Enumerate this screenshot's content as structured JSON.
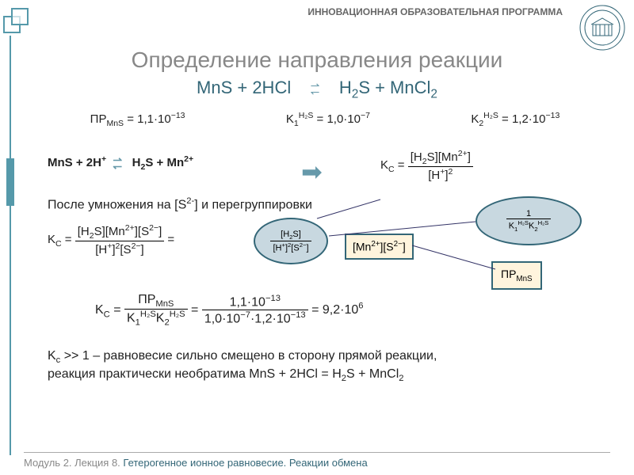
{
  "header": "ИННОВАЦИОННАЯ ОБРАЗОВАТЕЛЬНАЯ ПРОГРАММА",
  "title": "Определение направления реакции",
  "subtitle_eq": "MnS + 2HCl   ⇄   H₂S + MnCl₂",
  "const_PR": "ПР<sub>MnS</sub> = 1,1·10<sup>−13</sup>",
  "const_K1": "K<sub>1</sub><sup>H₂S</sup> = 1,0·10<sup>−7</sup>",
  "const_K2": "K<sub>2</sub><sup>H₂S</sup> = 1,2·10<sup>−13</sup>",
  "ionic_eq": "MnS + 2H<sup>+</sup>   ⇄   H<sub>2</sub>S + Mn<sup>2+</sup>",
  "Kc_def_n": "[H<sub>2</sub>S][Mn<sup>2+</sup>]",
  "Kc_def_d": "[H<sup>+</sup>]<sup>2</sup>",
  "after_mult": "После умножения на [S<sup>2-</sup>] и перегруппировки",
  "kc_exp_n": "[H<sub>2</sub>S][Mn<sup>2+</sup>][S<sup>2−</sup>]",
  "kc_exp_d": "[H<sup>+</sup>]<sup>2</sup>[S<sup>2−</sup>]",
  "oval1_n": "[H<sub>2</sub>S]",
  "oval1_d": "[H<sup>+</sup>]<sup>2</sup>[S<sup>2−</sup>]",
  "box1": "[Mn<sup>2+</sup>][S<sup>2−</sup>]",
  "oval2_n": "1",
  "oval2_d": "K<sub>1</sub><sup>H₂S</sup>K<sub>2</sub><sup>H₂S</sup>",
  "box2": "ПР<sub>MnS</sub>",
  "kc_final_sym_n": "ПР<sub>MnS</sub>",
  "kc_final_sym_d": "K<sub>1</sub><sup>H₂S</sup>K<sub>2</sub><sup>H₂S</sup>",
  "kc_final_num_n": "1,1·10<sup>−13</sup>",
  "kc_final_num_d": "1,0·10<sup>−7</sup>·1,2·10<sup>−13</sup>",
  "kc_result": "= 9,2·10<sup>6</sup>",
  "conclusion1": "K<sub>c</sub> >> 1 – равновесие сильно смещено в сторону прямой реакции,",
  "conclusion2": "реакция практически необратима MnS + 2HCl = H<sub>2</sub>S + MnCl<sub>2</sub>",
  "footer_mod": "Модуль 2. Лекция 8. ",
  "footer_topic": "Гетерогенное ионное равновесие. Реакции обмена",
  "colors": {
    "accent": "#336677",
    "deco": "#5599aa",
    "title": "#888888",
    "oval_bg": "#c8d8e0",
    "box_bg": "#fff4dd"
  }
}
